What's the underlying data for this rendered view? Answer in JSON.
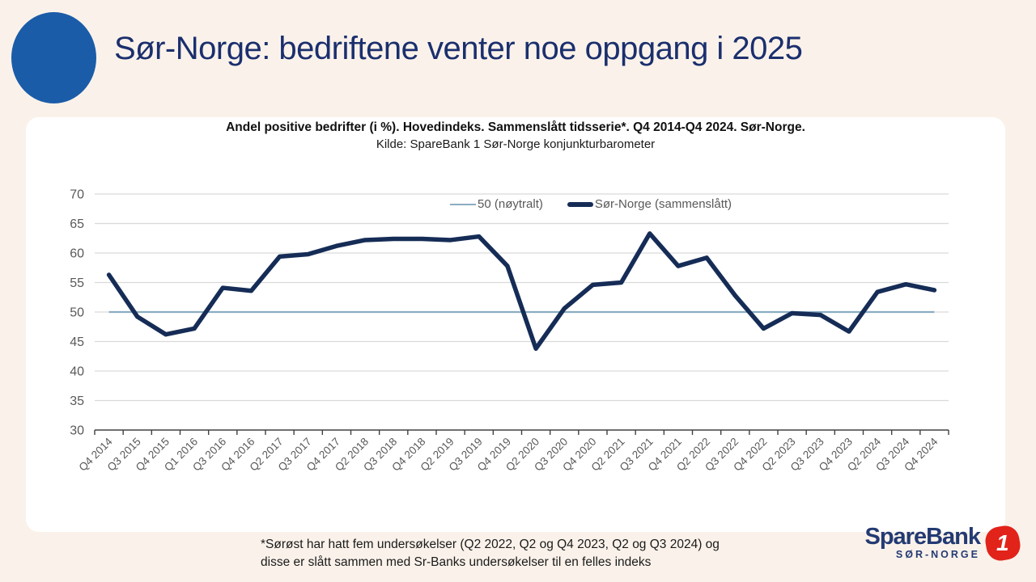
{
  "header": {
    "title": "Sør-Norge: bedriftene venter noe oppgang i 2025"
  },
  "chart_data": {
    "type": "line",
    "title": "Andel positive bedrifter (i %). Hovedindeks. Sammenslått tidsserie*. Q4 2014-Q4 2024. Sør-Norge.",
    "subtitle": "Kilde: SpareBank 1 Sør-Norge konjunkturbarometer",
    "categories": [
      "Q4 2014",
      "Q3 2015",
      "Q4 2015",
      "Q1 2016",
      "Q3 2016",
      "Q4 2016",
      "Q2 2017",
      "Q3 2017",
      "Q4 2017",
      "Q2 2018",
      "Q3 2018",
      "Q4 2018",
      "Q2 2019",
      "Q3 2019",
      "Q4 2019",
      "Q2 2020",
      "Q3 2020",
      "Q4 2020",
      "Q2 2021",
      "Q3 2021",
      "Q4 2021",
      "Q2 2022",
      "Q3 2022",
      "Q4 2022",
      "Q2 2023",
      "Q3 2023",
      "Q4 2023",
      "Q2 2024",
      "Q3 2024",
      "Q4 2024"
    ],
    "series": [
      {
        "name": "Sør-Norge (sammenslått)",
        "color": "#152c56",
        "values": [
          56.3,
          49.2,
          46.2,
          47.2,
          54.1,
          53.6,
          59.4,
          59.8,
          61.2,
          62.2,
          62.4,
          62.4,
          62.2,
          62.8,
          57.8,
          43.8,
          50.6,
          54.6,
          55.0,
          63.3,
          57.8,
          59.2,
          52.8,
          47.2,
          49.8,
          49.5,
          46.7,
          53.4,
          54.7,
          53.7
        ]
      }
    ],
    "neutral_line": {
      "label": "50 (nøytralt)",
      "value": 50,
      "color": "#8badc2"
    },
    "ylim": [
      30,
      70
    ],
    "ytick_step": 5,
    "grid": true,
    "legend_position": "top"
  },
  "footnote": {
    "line1": "*Sørøst har hatt fem undersøkelser (Q2 2022, Q2 og Q4 2023, Q2 og Q3 2024) og",
    "line2": "disse er slått sammen med Sr-Banks undersøkelser til en felles indeks"
  },
  "logo": {
    "brand": "SpareBank",
    "badge": "1",
    "region": "SØR-NORGE"
  },
  "colors": {
    "background": "#faf2ea",
    "accent_circle": "#1b5ca8",
    "title_navy": "#1b2f6e",
    "series_navy": "#152c56",
    "neutral_blue": "#8badc2",
    "logo_red": "#e2231a",
    "gridline": "#d9d9d9",
    "axis_text": "#595959"
  }
}
